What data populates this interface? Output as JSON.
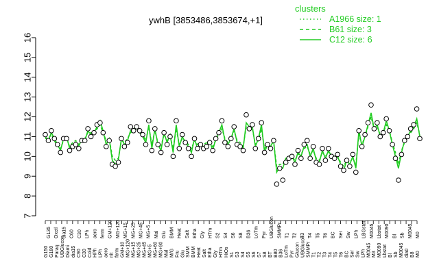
{
  "chart_data": {
    "type": "line",
    "title": "ywhB [3853486,3853674,+1]",
    "xlabel": "",
    "ylabel": "",
    "ylim": [
      7,
      16
    ],
    "yticks": [
      7,
      8,
      9,
      10,
      11,
      12,
      13,
      14,
      15,
      16
    ],
    "grid": false,
    "legend": {
      "title": "clusters",
      "position": "top-right",
      "entries": [
        {
          "label": "A1966 size: 1",
          "style": "dotted"
        },
        {
          "label": "B61 size: 3",
          "style": "dashed"
        },
        {
          "label": "C12 size: 6",
          "style": "solid"
        }
      ]
    },
    "tick_labels_row1": [
      "G150",
      "G180",
      "Paraq",
      "UBGlucon",
      "Diami",
      "dia15",
      "C90",
      "C30",
      "Cold",
      "HPh",
      "LPh",
      "aero",
      "nit",
      "ferm",
      "GM+10",
      "MG+120",
      "MG+15",
      "MG+25",
      "MG+45",
      "MG+5",
      "MG+60",
      "MG+90",
      "Mal",
      "M/G",
      "Fru",
      "Glu",
      "SMM",
      "BMM",
      "Heat",
      "Salt",
      "Etha",
      "Gly",
      "HTm",
      "HiOs",
      "S1",
      "S3",
      "S4",
      "S5",
      "S6",
      "S7",
      "S8",
      "BT",
      "B80",
      "B36",
      "LoTm",
      "Pyr",
      "Glucon",
      "UBGlucon",
      "SMMPr",
      "T1",
      "T2",
      "T3",
      "T4",
      "T5",
      "T6",
      "BC",
      "Ser",
      "Sw",
      "LPh",
      "M0045",
      "M3",
      "M0090",
      "Lbstat",
      "Bl",
      "Sb",
      "M0045",
      "dia0",
      "B8",
      "M0"
    ],
    "tick_labels_row2": [
      "G135",
      "Oxctl",
      "dia15",
      "C60",
      "C30",
      "LPh",
      "aero",
      "ferm",
      "GM+120",
      "MG+120",
      "MG+15",
      "MG+25",
      "MG+45",
      "MG+5",
      "Mal",
      "Glu",
      "BMM",
      "Heat",
      "Salt",
      "Etha",
      "Gly",
      "HTm",
      "S2",
      "S4",
      "S6",
      "S8",
      "B36",
      "LoTm",
      "Pyr",
      "UBGlucon",
      "SMMPr",
      "T1",
      "T2",
      "T3",
      "T4",
      "T5",
      "T6",
      "BC",
      "Ser",
      "Sw",
      "LPh",
      "LBGstat",
      "M0045",
      "Lbstat",
      "M0090",
      "Bl",
      "Sb",
      "M0045",
      "M0"
    ],
    "series": [
      {
        "style": "solid",
        "color": "#22cc22",
        "values": [
          11.0,
          10.8,
          11.2,
          10.9,
          10.6,
          10.3,
          10.9,
          11.0,
          10.4,
          10.6,
          10.7,
          10.5,
          10.9,
          10.8,
          11.3,
          11.1,
          11.2,
          11.5,
          11.8,
          11.3,
          10.6,
          10.9,
          9.8,
          9.6,
          9.8,
          10.9,
          10.6,
          10.8,
          11.3,
          11.4,
          11.5,
          11.2,
          11.0,
          10.7,
          11.6,
          10.4,
          11.4,
          10.6,
          10.3,
          11.2,
          10.7,
          11.1,
          10.2,
          11.6,
          10.5,
          11.0,
          10.7,
          10.5,
          10.2,
          10.9,
          10.4,
          10.6,
          10.5,
          10.6,
          10.8,
          10.3,
          10.9,
          11.2,
          11.6,
          10.8,
          10.6,
          10.9,
          11.4,
          10.7,
          10.6,
          10.4,
          11.7,
          11.5,
          11.5,
          10.5,
          10.9,
          11.6,
          10.2,
          10.6,
          10.5,
          10.8,
          9.2,
          9.5,
          9.4,
          9.9,
          9.9,
          10.0,
          9.7,
          10.2,
          10.0,
          10.5,
          10.6,
          10.0,
          10.4,
          9.8,
          9.7,
          10.3,
          9.9,
          10.3,
          10.0,
          9.9,
          10.0,
          9.6,
          9.3,
          9.8,
          9.6,
          10.0,
          9.4,
          11.3,
          10.5,
          11.0,
          11.6,
          12.2,
          11.4,
          11.6,
          11.0,
          11.2,
          11.8,
          11.3,
          10.6,
          10.0,
          9.4,
          10.2,
          10.8,
          11.0,
          11.3,
          11.5,
          11.9,
          11.0
        ]
      },
      {
        "style": "dashed",
        "color": "#22cc22",
        "values": [
          10.9,
          10.9,
          11.1,
          10.8,
          10.5,
          10.4,
          10.8,
          10.9,
          10.5,
          10.7,
          10.8,
          10.6,
          10.8,
          10.9,
          11.2,
          11.2,
          11.1,
          11.4,
          11.6,
          11.2,
          10.8,
          10.9,
          10.0,
          9.8,
          9.9,
          10.8,
          10.7,
          10.9,
          11.2,
          11.3,
          11.4,
          11.3,
          11.1,
          10.8,
          11.5,
          10.6,
          11.3,
          10.7,
          10.5,
          11.1,
          10.8,
          11.0,
          10.4,
          11.4,
          10.6,
          10.9,
          10.8,
          10.6,
          10.4,
          10.8,
          10.6,
          10.7,
          10.6,
          10.7,
          10.7,
          10.5,
          10.8,
          11.1,
          11.4,
          10.9,
          10.7,
          10.9,
          11.3,
          10.8,
          10.7,
          10.5,
          11.5,
          11.4,
          11.4,
          10.6,
          10.8,
          11.4,
          10.4,
          10.6,
          10.6,
          10.7,
          9.5,
          9.6,
          9.6,
          9.9,
          10.0,
          10.0,
          9.8,
          10.1,
          10.1,
          10.4,
          10.5,
          10.1,
          10.3,
          9.9,
          9.8,
          10.2,
          10.0,
          10.2,
          10.1,
          10.0,
          10.0,
          9.7,
          9.5,
          9.8,
          9.7,
          9.9,
          9.6,
          11.1,
          10.6,
          11.0,
          11.5,
          12.0,
          11.4,
          11.5,
          11.1,
          11.2,
          11.6,
          11.3,
          10.7,
          10.2,
          9.6,
          10.3,
          10.7,
          11.0,
          11.2,
          11.4,
          11.7,
          11.1
        ]
      },
      {
        "style": "points",
        "color": "#000000",
        "values": [
          11.1,
          10.8,
          11.3,
          10.9,
          10.6,
          10.2,
          10.9,
          10.9,
          10.3,
          10.5,
          10.6,
          10.4,
          10.8,
          10.8,
          11.4,
          11.0,
          11.2,
          11.6,
          11.7,
          11.2,
          10.5,
          10.8,
          9.6,
          9.5,
          9.7,
          10.9,
          10.5,
          10.7,
          11.5,
          11.3,
          11.5,
          11.3,
          11.1,
          10.6,
          11.8,
          10.3,
          11.4,
          10.6,
          10.2,
          11.2,
          10.6,
          11.0,
          10.0,
          11.8,
          10.4,
          11.1,
          10.7,
          10.4,
          10.0,
          10.9,
          10.4,
          10.6,
          10.4,
          10.5,
          10.7,
          10.3,
          10.9,
          11.2,
          11.8,
          10.7,
          10.5,
          10.9,
          11.5,
          10.6,
          10.5,
          10.3,
          12.1,
          11.4,
          11.6,
          10.4,
          10.9,
          11.7,
          10.2,
          10.6,
          10.4,
          10.8,
          8.6,
          9.4,
          8.8,
          9.7,
          9.9,
          10.0,
          9.6,
          10.3,
          9.9,
          10.6,
          10.8,
          9.9,
          10.5,
          9.7,
          9.6,
          10.4,
          9.8,
          10.4,
          10.0,
          9.9,
          10.1,
          9.5,
          9.3,
          9.8,
          9.5,
          10.1,
          9.2,
          11.3,
          10.5,
          11.1,
          11.7,
          12.6,
          11.4,
          11.7,
          11.0,
          11.2,
          11.9,
          11.3,
          10.6,
          9.9,
          8.8,
          10.1,
          10.8,
          11.0,
          11.4,
          11.6,
          12.4,
          10.9
        ]
      }
    ]
  }
}
